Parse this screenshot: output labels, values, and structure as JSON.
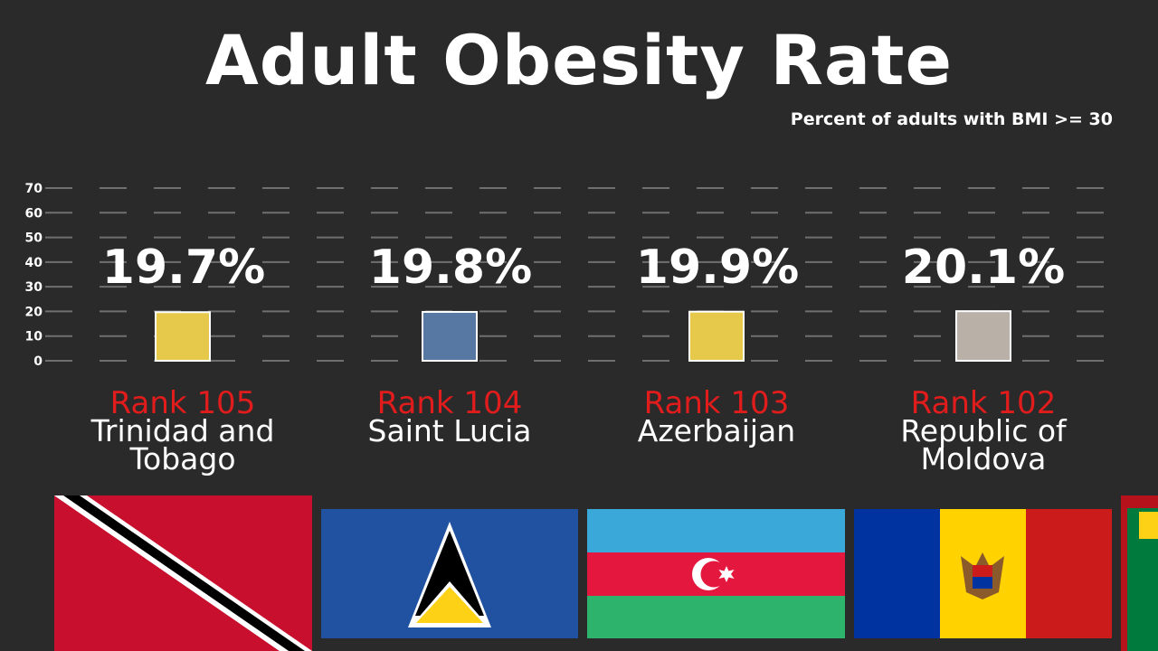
{
  "header": {
    "title": "Adult Obesity Rate",
    "subtitle": "Percent of adults with BMI >= 30"
  },
  "colors": {
    "background": "#2a2a2a",
    "rank": "#e01c1c",
    "grid": "#6f6f6f"
  },
  "chart_data": {
    "type": "bar",
    "title": "Adult Obesity Rate",
    "subtitle": "Percent of adults with BMI >= 30",
    "ylim": [
      0,
      70
    ],
    "yticks": [
      0,
      10,
      20,
      30,
      40,
      50,
      60,
      70
    ],
    "grid": true,
    "categories": [
      "Trinidad and Tobago",
      "Saint Lucia",
      "Azerbaijan",
      "Republic of Moldova"
    ],
    "values": [
      19.7,
      19.8,
      19.9,
      20.1
    ]
  },
  "bars": [
    {
      "value_label": "19.7%",
      "rank": "Rank 105",
      "country": "Trinidad and Tobago",
      "color": "#e6c84a",
      "flag": "trinidad-and-tobago-flag"
    },
    {
      "value_label": "19.8%",
      "rank": "Rank 104",
      "country": "Saint Lucia",
      "color": "#5878a4",
      "flag": "saint-lucia-flag"
    },
    {
      "value_label": "19.9%",
      "rank": "Rank 103",
      "country": "Azerbaijan",
      "color": "#e6c84a",
      "flag": "azerbaijan-flag"
    },
    {
      "value_label": "20.1%",
      "rank": "Rank 102",
      "country": "Republic of Moldova",
      "color": "#b9b0a8",
      "flag": "moldova-flag"
    }
  ]
}
